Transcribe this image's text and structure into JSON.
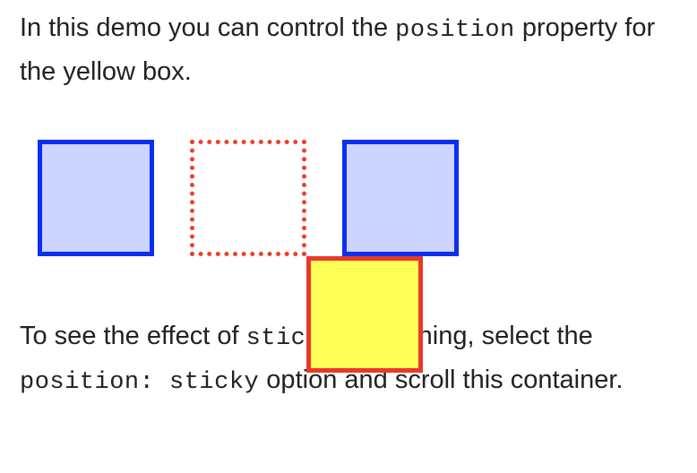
{
  "intro": {
    "text_before": "In this demo you can control the ",
    "code": "position",
    "text_after": " property for the yellow box."
  },
  "outro": {
    "text_before": "To see the effect of ",
    "code_sticky": "sticky",
    "text_middle": " positioning, select the ",
    "code_option": "position: sticky",
    "text_after": " option and scroll this container."
  },
  "colors": {
    "blue_border": "#0d2ff0",
    "blue_fill": "#ccd4ff",
    "red_border": "#e9392a",
    "yellow_fill": "#ffff55"
  }
}
